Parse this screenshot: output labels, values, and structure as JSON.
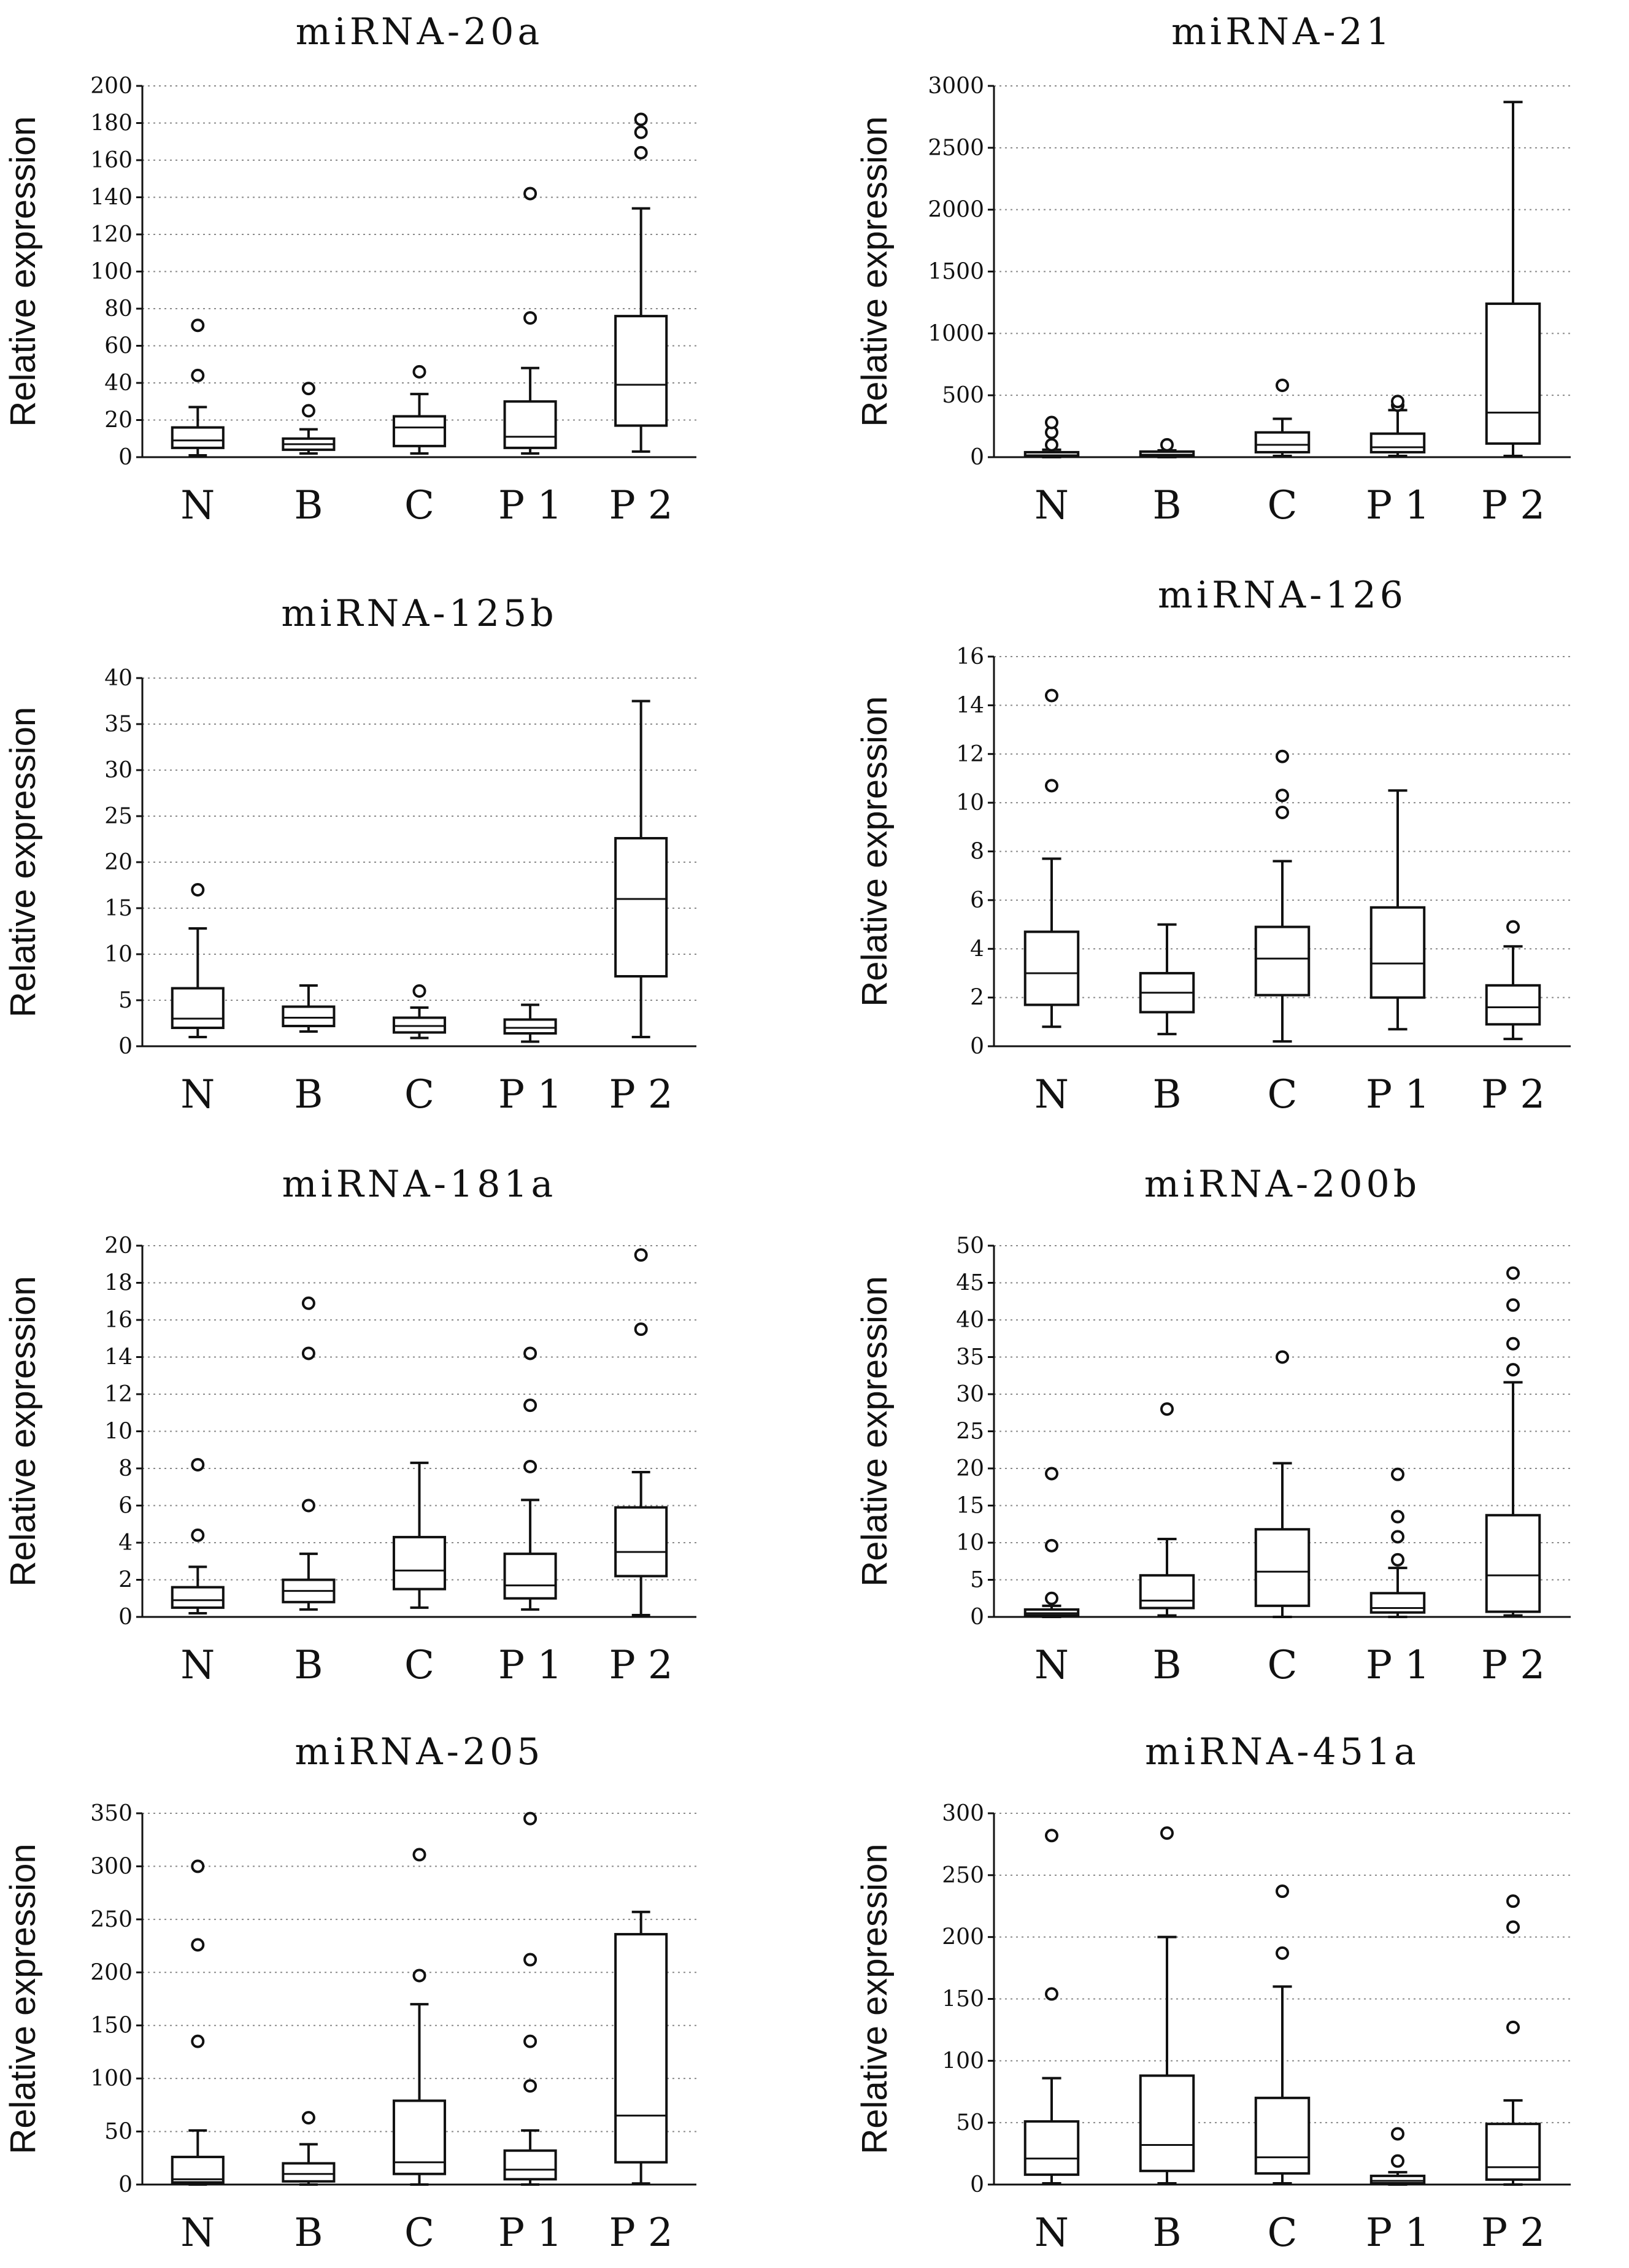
{
  "chart_data": [
    {
      "type": "box",
      "title": "miRNA-20a",
      "ylabel": "Relative expression",
      "ylim": [
        0,
        200
      ],
      "yticks": [
        0,
        20,
        40,
        60,
        80,
        100,
        120,
        140,
        160,
        180,
        200
      ],
      "categories": [
        "N",
        "B",
        "C",
        "P 1",
        "P 2"
      ],
      "boxes": [
        {
          "min": 1,
          "q1": 5,
          "median": 9,
          "q3": 16,
          "max": 27,
          "outliers": [
            44,
            71
          ]
        },
        {
          "min": 2,
          "q1": 4,
          "median": 7,
          "q3": 10,
          "max": 15,
          "outliers": [
            25,
            37
          ]
        },
        {
          "min": 2,
          "q1": 6,
          "median": 16,
          "q3": 22,
          "max": 34,
          "outliers": [
            46
          ]
        },
        {
          "min": 2,
          "q1": 5,
          "median": 11,
          "q3": 30,
          "max": 48,
          "outliers": [
            75,
            142
          ]
        },
        {
          "min": 3,
          "q1": 17,
          "median": 39,
          "q3": 76,
          "max": 134,
          "outliers": [
            164,
            175,
            182
          ]
        }
      ]
    },
    {
      "type": "box",
      "title": "miRNA-21",
      "ylabel": "Relative expression",
      "ylim": [
        0,
        3000
      ],
      "yticks": [
        0,
        500,
        1000,
        1500,
        2000,
        2500,
        3000
      ],
      "categories": [
        "N",
        "B",
        "C",
        "P 1",
        "P 2"
      ],
      "boxes": [
        {
          "min": 0,
          "q1": 5,
          "median": 15,
          "q3": 40,
          "max": 60,
          "outliers": [
            100,
            200,
            280
          ]
        },
        {
          "min": 0,
          "q1": 5,
          "median": 20,
          "q3": 45,
          "max": 55,
          "outliers": [
            100
          ]
        },
        {
          "min": 10,
          "q1": 40,
          "median": 100,
          "q3": 200,
          "max": 310,
          "outliers": [
            580
          ]
        },
        {
          "min": 10,
          "q1": 40,
          "median": 80,
          "q3": 190,
          "max": 380,
          "outliers": [
            420,
            450
          ]
        },
        {
          "min": 10,
          "q1": 110,
          "median": 360,
          "q3": 1240,
          "max": 2870,
          "outliers": []
        }
      ]
    },
    {
      "type": "box",
      "title": "miRNA-125b",
      "ylabel": "Relative expression",
      "ylim": [
        0,
        40
      ],
      "yticks": [
        0,
        5,
        10,
        15,
        20,
        25,
        30,
        35,
        40
      ],
      "categories": [
        "N",
        "B",
        "C",
        "P 1",
        "P 2"
      ],
      "boxes": [
        {
          "min": 1,
          "q1": 2,
          "median": 3,
          "q3": 6.3,
          "max": 12.8,
          "outliers": [
            17
          ]
        },
        {
          "min": 1.6,
          "q1": 2.2,
          "median": 3.1,
          "q3": 4.3,
          "max": 6.6,
          "outliers": []
        },
        {
          "min": 0.9,
          "q1": 1.5,
          "median": 2.2,
          "q3": 3.1,
          "max": 4.2,
          "outliers": [
            6
          ]
        },
        {
          "min": 0.5,
          "q1": 1.4,
          "median": 2,
          "q3": 2.9,
          "max": 4.5,
          "outliers": []
        },
        {
          "min": 1,
          "q1": 7.6,
          "median": 16,
          "q3": 22.6,
          "max": 37.5,
          "outliers": []
        }
      ]
    },
    {
      "type": "box",
      "title": "miRNA-126",
      "ylabel": "Relative expression",
      "ylim": [
        0,
        16
      ],
      "yticks": [
        0,
        2,
        4,
        6,
        8,
        10,
        12,
        14,
        16
      ],
      "categories": [
        "N",
        "B",
        "C",
        "P 1",
        "P 2"
      ],
      "boxes": [
        {
          "min": 0.8,
          "q1": 1.7,
          "median": 3,
          "q3": 4.7,
          "max": 7.7,
          "outliers": [
            10.7,
            14.4
          ]
        },
        {
          "min": 0.5,
          "q1": 1.4,
          "median": 2.2,
          "q3": 3,
          "max": 5,
          "outliers": []
        },
        {
          "min": 0.2,
          "q1": 2.1,
          "median": 3.6,
          "q3": 4.9,
          "max": 7.6,
          "outliers": [
            9.6,
            10.3,
            11.9
          ]
        },
        {
          "min": 0.7,
          "q1": 2,
          "median": 3.4,
          "q3": 5.7,
          "max": 10.5,
          "outliers": []
        },
        {
          "min": 0.3,
          "q1": 0.9,
          "median": 1.6,
          "q3": 2.5,
          "max": 4.1,
          "outliers": [
            4.9
          ]
        }
      ]
    },
    {
      "type": "box",
      "title": "miRNA-181a",
      "ylabel": "Relative expression",
      "ylim": [
        0,
        20
      ],
      "yticks": [
        0,
        2,
        4,
        6,
        8,
        10,
        12,
        14,
        16,
        18,
        20
      ],
      "categories": [
        "N",
        "B",
        "C",
        "P 1",
        "P 2"
      ],
      "boxes": [
        {
          "min": 0.2,
          "q1": 0.5,
          "median": 0.9,
          "q3": 1.6,
          "max": 2.7,
          "outliers": [
            4.4,
            8.2
          ]
        },
        {
          "min": 0.4,
          "q1": 0.8,
          "median": 1.4,
          "q3": 2,
          "max": 3.4,
          "outliers": [
            6,
            14.2,
            16.9
          ]
        },
        {
          "min": 0.5,
          "q1": 1.5,
          "median": 2.5,
          "q3": 4.3,
          "max": 8.3,
          "outliers": []
        },
        {
          "min": 0.4,
          "q1": 1,
          "median": 1.7,
          "q3": 3.4,
          "max": 6.3,
          "outliers": [
            8.1,
            11.4,
            14.2
          ]
        },
        {
          "min": 0.1,
          "q1": 2.2,
          "median": 3.5,
          "q3": 5.9,
          "max": 7.8,
          "outliers": [
            15.5,
            19.5
          ]
        }
      ]
    },
    {
      "type": "box",
      "title": "miRNA-200b",
      "ylabel": "Relative expression",
      "ylim": [
        0,
        50
      ],
      "yticks": [
        0,
        5,
        10,
        15,
        20,
        25,
        30,
        35,
        40,
        45,
        50
      ],
      "categories": [
        "N",
        "B",
        "C",
        "P 1",
        "P 2"
      ],
      "boxes": [
        {
          "min": 0,
          "q1": 0.2,
          "median": 0.5,
          "q3": 1,
          "max": 1.5,
          "outliers": [
            2.5,
            9.6,
            19.3
          ]
        },
        {
          "min": 0.2,
          "q1": 1.2,
          "median": 2.2,
          "q3": 5.6,
          "max": 10.5,
          "outliers": [
            28
          ]
        },
        {
          "min": 0,
          "q1": 1.5,
          "median": 6.1,
          "q3": 11.8,
          "max": 20.7,
          "outliers": [
            35
          ]
        },
        {
          "min": 0,
          "q1": 0.6,
          "median": 1.2,
          "q3": 3.2,
          "max": 6.6,
          "outliers": [
            7.7,
            10.8,
            13.5,
            19.2
          ]
        },
        {
          "min": 0.2,
          "q1": 0.7,
          "median": 5.6,
          "q3": 13.7,
          "max": 31.6,
          "outliers": [
            33.3,
            36.8,
            42,
            46.3
          ]
        }
      ]
    },
    {
      "type": "box",
      "title": "miRNA-205",
      "ylabel": "Relative expression",
      "ylim": [
        0,
        350
      ],
      "yticks": [
        0,
        50,
        100,
        150,
        200,
        250,
        300,
        350
      ],
      "categories": [
        "N",
        "B",
        "C",
        "P 1",
        "P 2"
      ],
      "boxes": [
        {
          "min": 0,
          "q1": 2,
          "median": 5,
          "q3": 26,
          "max": 51,
          "outliers": [
            135,
            226,
            300
          ]
        },
        {
          "min": 0,
          "q1": 3,
          "median": 10,
          "q3": 20,
          "max": 38,
          "outliers": [
            63
          ]
        },
        {
          "min": 0,
          "q1": 10,
          "median": 21,
          "q3": 79,
          "max": 170,
          "outliers": [
            197,
            311
          ]
        },
        {
          "min": 0,
          "q1": 5,
          "median": 14,
          "q3": 32,
          "max": 51,
          "outliers": [
            93,
            135,
            212,
            345
          ]
        },
        {
          "min": 1,
          "q1": 21,
          "median": 65,
          "q3": 236,
          "max": 257,
          "outliers": []
        }
      ]
    },
    {
      "type": "box",
      "title": "miRNA-451a",
      "ylabel": "Relative expression",
      "ylim": [
        0,
        300
      ],
      "yticks": [
        0,
        50,
        100,
        150,
        200,
        250,
        300
      ],
      "categories": [
        "N",
        "B",
        "C",
        "P 1",
        "P 2"
      ],
      "boxes": [
        {
          "min": 1,
          "q1": 8,
          "median": 21,
          "q3": 51,
          "max": 86,
          "outliers": [
            154,
            282
          ]
        },
        {
          "min": 1,
          "q1": 11,
          "median": 32,
          "q3": 88,
          "max": 200,
          "outliers": [
            284
          ]
        },
        {
          "min": 1,
          "q1": 9,
          "median": 22,
          "q3": 70,
          "max": 160,
          "outliers": [
            187,
            237
          ]
        },
        {
          "min": 0,
          "q1": 1,
          "median": 3,
          "q3": 7,
          "max": 10,
          "outliers": [
            19,
            41
          ]
        },
        {
          "min": 0,
          "q1": 4,
          "median": 14,
          "q3": 49,
          "max": 68,
          "outliers": [
            127,
            208,
            229
          ]
        }
      ]
    }
  ]
}
